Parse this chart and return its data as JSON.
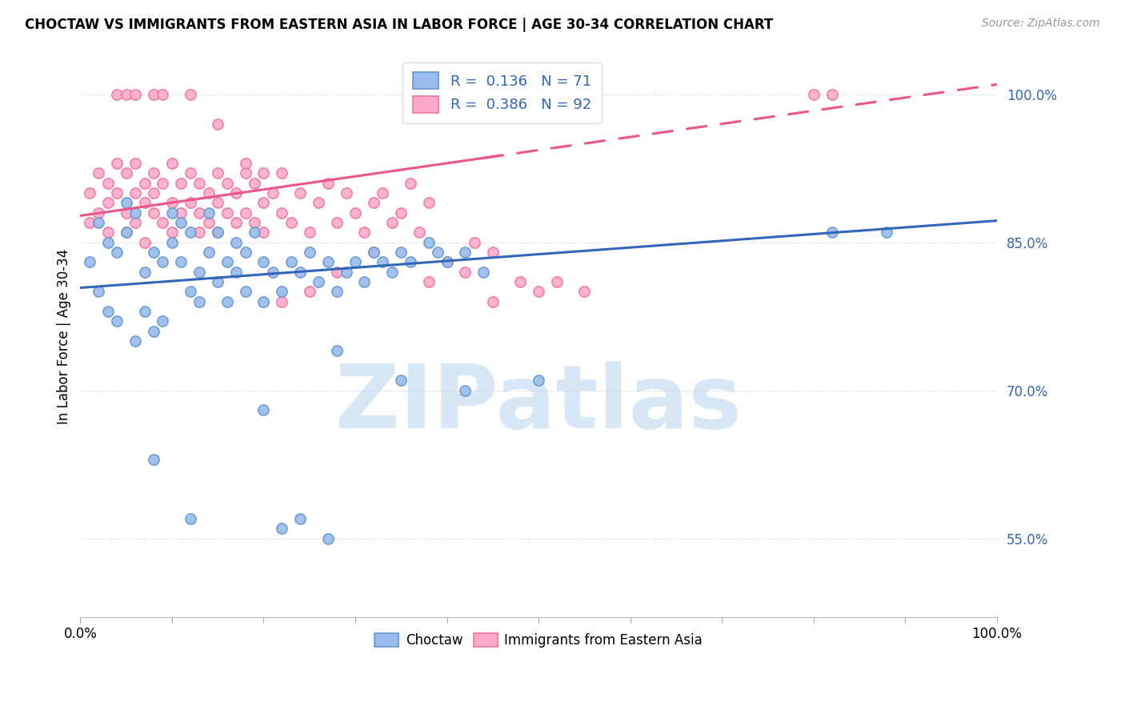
{
  "title": "CHOCTAW VS IMMIGRANTS FROM EASTERN ASIA IN LABOR FORCE | AGE 30-34 CORRELATION CHART",
  "source": "Source: ZipAtlas.com",
  "ylabel": "In Labor Force | Age 30-34",
  "xlim": [
    0.0,
    1.0
  ],
  "ylim": [
    0.47,
    1.04
  ],
  "yticks": [
    0.55,
    0.7,
    0.85,
    1.0
  ],
  "ytick_labels": [
    "55.0%",
    "70.0%",
    "85.0%",
    "100.0%"
  ],
  "blue_R": 0.136,
  "blue_N": 71,
  "pink_R": 0.386,
  "pink_N": 92,
  "blue_dot_color": "#99BBEE",
  "blue_dot_edge": "#6699CC",
  "pink_dot_color": "#FFAACC",
  "pink_dot_edge": "#EE7799",
  "blue_line_color": "#3366BB",
  "pink_line_color": "#EE5588",
  "legend_label_blue": "Choctaw",
  "legend_label_pink": "Immigrants from Eastern Asia",
  "watermark": "ZIPatlas",
  "watermark_color": "#BDD8F0",
  "background_color": "#FFFFFF",
  "blue_scatter_x": [
    0.01,
    0.02,
    0.02,
    0.03,
    0.03,
    0.04,
    0.04,
    0.05,
    0.05,
    0.06,
    0.06,
    0.07,
    0.07,
    0.08,
    0.08,
    0.09,
    0.09,
    0.1,
    0.1,
    0.11,
    0.11,
    0.12,
    0.12,
    0.13,
    0.13,
    0.14,
    0.14,
    0.15,
    0.15,
    0.16,
    0.16,
    0.17,
    0.17,
    0.18,
    0.18,
    0.19,
    0.2,
    0.2,
    0.21,
    0.22,
    0.23,
    0.24,
    0.25,
    0.26,
    0.27,
    0.28,
    0.29,
    0.3,
    0.31,
    0.32,
    0.33,
    0.34,
    0.35,
    0.36,
    0.38,
    0.39,
    0.4,
    0.42,
    0.44,
    0.08,
    0.12,
    0.2,
    0.28,
    0.35,
    0.42,
    0.5,
    0.82,
    0.88,
    0.22,
    0.24,
    0.27
  ],
  "blue_scatter_y": [
    0.83,
    0.87,
    0.8,
    0.85,
    0.78,
    0.77,
    0.84,
    0.86,
    0.89,
    0.88,
    0.75,
    0.82,
    0.78,
    0.84,
    0.76,
    0.83,
    0.77,
    0.88,
    0.85,
    0.87,
    0.83,
    0.8,
    0.86,
    0.82,
    0.79,
    0.88,
    0.84,
    0.81,
    0.86,
    0.83,
    0.79,
    0.85,
    0.82,
    0.8,
    0.84,
    0.86,
    0.83,
    0.79,
    0.82,
    0.8,
    0.83,
    0.82,
    0.84,
    0.81,
    0.83,
    0.8,
    0.82,
    0.83,
    0.81,
    0.84,
    0.83,
    0.82,
    0.84,
    0.83,
    0.85,
    0.84,
    0.83,
    0.84,
    0.82,
    0.63,
    0.57,
    0.68,
    0.74,
    0.71,
    0.7,
    0.71,
    0.86,
    0.86,
    0.56,
    0.57,
    0.55
  ],
  "pink_scatter_x": [
    0.01,
    0.01,
    0.02,
    0.02,
    0.03,
    0.03,
    0.03,
    0.04,
    0.04,
    0.05,
    0.05,
    0.05,
    0.06,
    0.06,
    0.06,
    0.07,
    0.07,
    0.07,
    0.08,
    0.08,
    0.08,
    0.09,
    0.09,
    0.1,
    0.1,
    0.1,
    0.11,
    0.11,
    0.12,
    0.12,
    0.13,
    0.13,
    0.13,
    0.14,
    0.14,
    0.15,
    0.15,
    0.15,
    0.16,
    0.16,
    0.17,
    0.17,
    0.18,
    0.18,
    0.19,
    0.19,
    0.2,
    0.2,
    0.21,
    0.22,
    0.22,
    0.23,
    0.24,
    0.25,
    0.26,
    0.27,
    0.28,
    0.29,
    0.3,
    0.31,
    0.32,
    0.33,
    0.34,
    0.35,
    0.36,
    0.37,
    0.38,
    0.4,
    0.42,
    0.43,
    0.45,
    0.48,
    0.5,
    0.04,
    0.05,
    0.06,
    0.08,
    0.09,
    0.12,
    0.15,
    0.18,
    0.2,
    0.22,
    0.25,
    0.28,
    0.32,
    0.38,
    0.45,
    0.52,
    0.55,
    0.8,
    0.82
  ],
  "pink_scatter_y": [
    0.9,
    0.87,
    0.92,
    0.88,
    0.91,
    0.89,
    0.86,
    0.93,
    0.9,
    0.88,
    0.92,
    0.86,
    0.9,
    0.93,
    0.87,
    0.91,
    0.89,
    0.85,
    0.92,
    0.9,
    0.88,
    0.91,
    0.87,
    0.93,
    0.89,
    0.86,
    0.91,
    0.88,
    0.92,
    0.89,
    0.91,
    0.88,
    0.86,
    0.9,
    0.87,
    0.92,
    0.89,
    0.86,
    0.91,
    0.88,
    0.9,
    0.87,
    0.92,
    0.88,
    0.91,
    0.87,
    0.89,
    0.86,
    0.9,
    0.92,
    0.88,
    0.87,
    0.9,
    0.86,
    0.89,
    0.91,
    0.87,
    0.9,
    0.88,
    0.86,
    0.89,
    0.9,
    0.87,
    0.88,
    0.91,
    0.86,
    0.89,
    0.83,
    0.82,
    0.85,
    0.84,
    0.81,
    0.8,
    1.0,
    1.0,
    1.0,
    1.0,
    1.0,
    1.0,
    0.97,
    0.93,
    0.92,
    0.79,
    0.8,
    0.82,
    0.84,
    0.81,
    0.79,
    0.81,
    0.8,
    1.0,
    1.0
  ],
  "blue_trend_start": 0.804,
  "blue_trend_end": 0.872,
  "pink_trend_start": 0.877,
  "pink_trend_end": 1.01
}
